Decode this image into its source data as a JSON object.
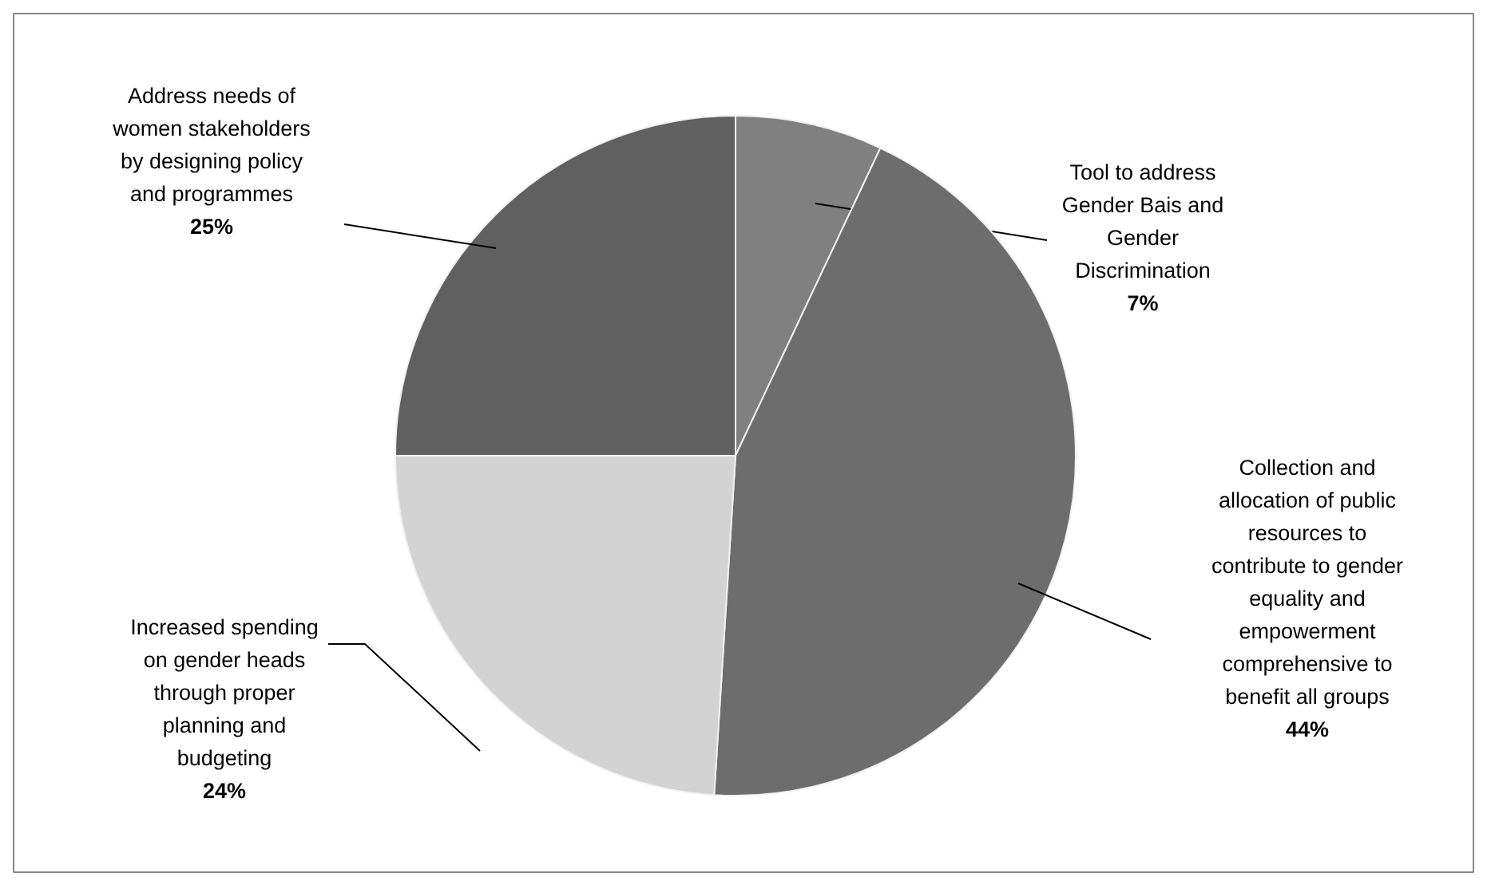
{
  "chart_data": {
    "type": "pie",
    "categories": [
      "Tool to address Gender Bais and Gender Discrimination",
      "Collection and allocation of public resources to contribute to gender equality and empowerment comprehensive to benefit all groups",
      "Increased spending on gender heads through proper planning and budgeting",
      "Address needs of women stakeholders by designing policy and programmes"
    ],
    "values": [
      7,
      44,
      24,
      25
    ],
    "value_labels": [
      "7%",
      "44%",
      "24%",
      "25%"
    ],
    "colors": [
      "#808080",
      "#6d6d6d",
      "#d3d3d3",
      "#606060"
    ]
  }
}
